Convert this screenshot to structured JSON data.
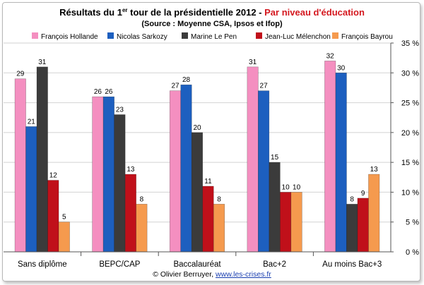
{
  "chart_data": {
    "type": "bar",
    "title_main": "Résultats du 1",
    "title_sup": "er",
    "title_rest": " tour de la présidentielle 2012 - ",
    "title_highlight": "Par niveau d'éducation",
    "subtitle": "(Source : Moyenne CSA, Ipsos et Ifop)",
    "categories": [
      "Sans diplôme",
      "BEPC/CAP",
      "Baccalauréat",
      "Bac+2",
      "Au moins Bac+3"
    ],
    "series": [
      {
        "name": "François Hollande",
        "color": "#f48fc0",
        "values": [
          29,
          26,
          27,
          31,
          32
        ]
      },
      {
        "name": "Nicolas Sarkozy",
        "color": "#1d5fbf",
        "values": [
          21,
          26,
          28,
          27,
          30
        ]
      },
      {
        "name": "Marine Le Pen",
        "color": "#3b3b3b",
        "values": [
          31,
          23,
          20,
          15,
          8
        ]
      },
      {
        "name": "Jean-Luc Mélenchon",
        "color": "#c0101a",
        "values": [
          12,
          13,
          11,
          10,
          9
        ]
      },
      {
        "name": "François Bayrou",
        "color": "#f59a4e",
        "values": [
          5,
          8,
          8,
          10,
          13
        ]
      }
    ],
    "ylim": [
      0,
      35
    ],
    "yticks": [
      "0 %",
      "5 %",
      "10 %",
      "15 %",
      "20 %",
      "25 %",
      "30 %",
      "35 %"
    ],
    "grid": true,
    "legend": "top",
    "axis_side": "right"
  },
  "footer": {
    "copyright": "© Olivier Berruyer, ",
    "link": "www.les-crises.fr"
  },
  "colors": {
    "title_highlight": "#d4181f",
    "link": "#1a3fb0"
  }
}
